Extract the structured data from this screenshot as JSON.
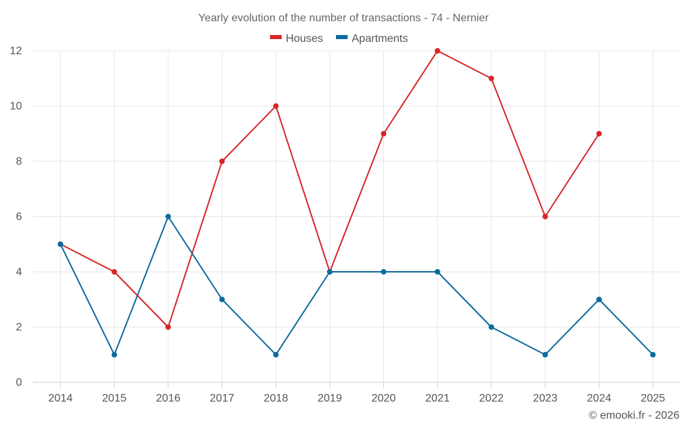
{
  "chart_data": {
    "type": "line",
    "title": "Yearly evolution of the number of transactions - 74 - Nernier",
    "xlabel": "",
    "ylabel": "",
    "categories": [
      "2014",
      "2015",
      "2016",
      "2017",
      "2018",
      "2019",
      "2020",
      "2021",
      "2022",
      "2023",
      "2024",
      "2025"
    ],
    "ylim": [
      0,
      12
    ],
    "yticks": [
      "0",
      "2",
      "4",
      "6",
      "8",
      "10",
      "12"
    ],
    "grid": true,
    "legend_position": "top-center",
    "series": [
      {
        "name": "Houses",
        "color": "#d62728",
        "values": [
          5,
          4,
          2,
          8,
          10,
          4,
          9,
          12,
          11,
          6,
          9,
          null
        ]
      },
      {
        "name": "Apartments",
        "color": "#0d6a9c",
        "values": [
          5,
          1,
          6,
          3,
          1,
          4,
          4,
          4,
          2,
          1,
          3,
          1
        ]
      }
    ],
    "credit": "© emooki.fr - 2026"
  }
}
